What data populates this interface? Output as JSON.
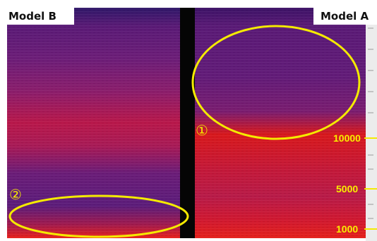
{
  "panels": {
    "left_label": "Model B",
    "right_label": "Model A"
  },
  "frequency_axis": {
    "ticks": [
      "10000",
      "5000",
      "1000"
    ]
  },
  "annotations": {
    "region_1": "①",
    "region_2": "②"
  },
  "colors": {
    "annotation_yellow": "#f4ea00",
    "divider_black": "#050505",
    "spectrogram_low": "#3b1266",
    "spectrogram_mid": "#8a1f78",
    "spectrogram_high": "#e0161e"
  }
}
